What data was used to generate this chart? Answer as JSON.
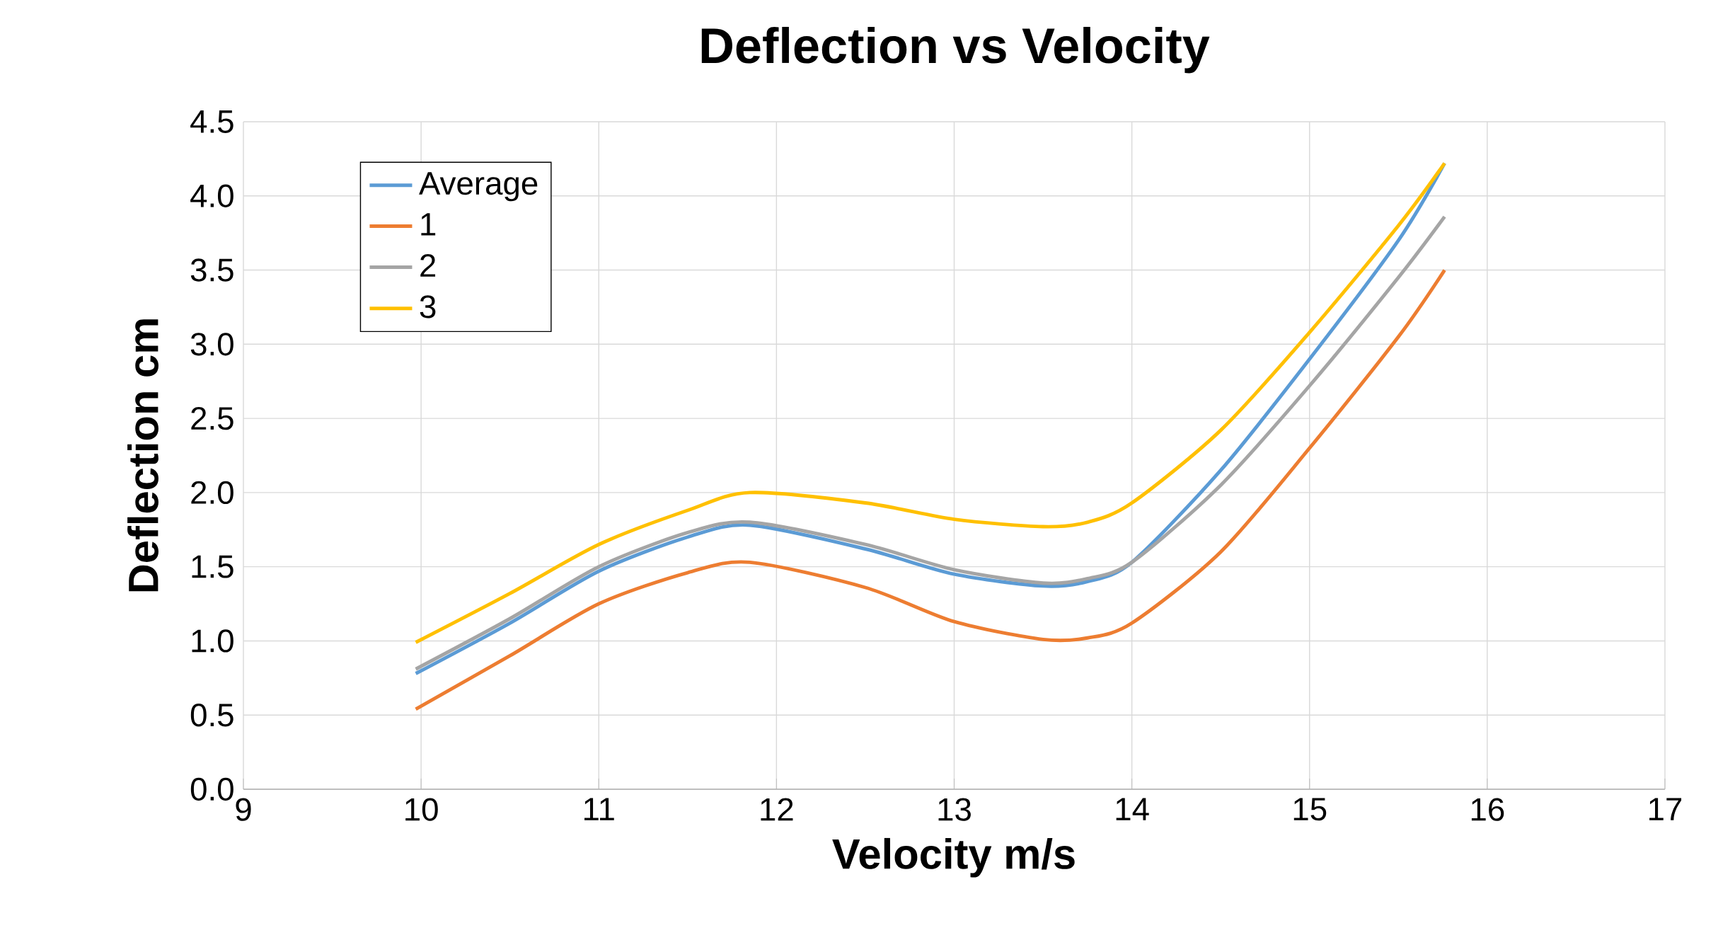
{
  "chart_data": {
    "type": "line",
    "title": "Deflection vs Velocity",
    "xlabel": "Velocity m/s",
    "ylabel": "Deflection cm",
    "x": [
      9.97,
      10.5,
      11,
      11.5,
      11.85,
      12.5,
      13,
      13.5,
      13.75,
      14,
      14.5,
      15,
      15.5,
      15.76
    ],
    "series": [
      {
        "name": "Average",
        "color": "#5b9bd5",
        "values": [
          0.78,
          1.12,
          1.47,
          1.7,
          1.78,
          1.62,
          1.45,
          1.37,
          1.4,
          1.53,
          2.15,
          2.9,
          3.7,
          4.22
        ]
      },
      {
        "name": "1",
        "color": "#ed7d31",
        "values": [
          0.54,
          0.9,
          1.25,
          1.46,
          1.53,
          1.36,
          1.13,
          1.01,
          1.02,
          1.12,
          1.6,
          2.3,
          3.05,
          3.5
        ]
      },
      {
        "name": "2",
        "color": "#a5a5a5",
        "values": [
          0.81,
          1.15,
          1.5,
          1.73,
          1.8,
          1.65,
          1.48,
          1.39,
          1.42,
          1.53,
          2.05,
          2.72,
          3.45,
          3.86
        ]
      },
      {
        "name": "3",
        "color": "#ffc000",
        "values": [
          0.99,
          1.32,
          1.65,
          1.88,
          2.0,
          1.93,
          1.82,
          1.77,
          1.8,
          1.93,
          2.42,
          3.08,
          3.8,
          4.22
        ]
      }
    ],
    "xlim": [
      9,
      17
    ],
    "xticks": [
      9,
      10,
      11,
      12,
      13,
      14,
      15,
      16,
      17
    ],
    "ylim": [
      0,
      4.5
    ],
    "yticks": [
      {
        "value": 0,
        "label": "0.0"
      },
      {
        "value": 0.5,
        "label": "0.5"
      },
      {
        "value": 1,
        "label": "1.0"
      },
      {
        "value": 1.5,
        "label": "1.5"
      },
      {
        "value": 2,
        "label": "2.0"
      },
      {
        "value": 2.5,
        "label": "2.5"
      },
      {
        "value": 3,
        "label": "3.0"
      },
      {
        "value": 3.5,
        "label": "3.5"
      },
      {
        "value": 4,
        "label": "4.0"
      },
      {
        "value": 4.5,
        "label": "4.5"
      }
    ],
    "grid": true,
    "legend": "top left"
  }
}
